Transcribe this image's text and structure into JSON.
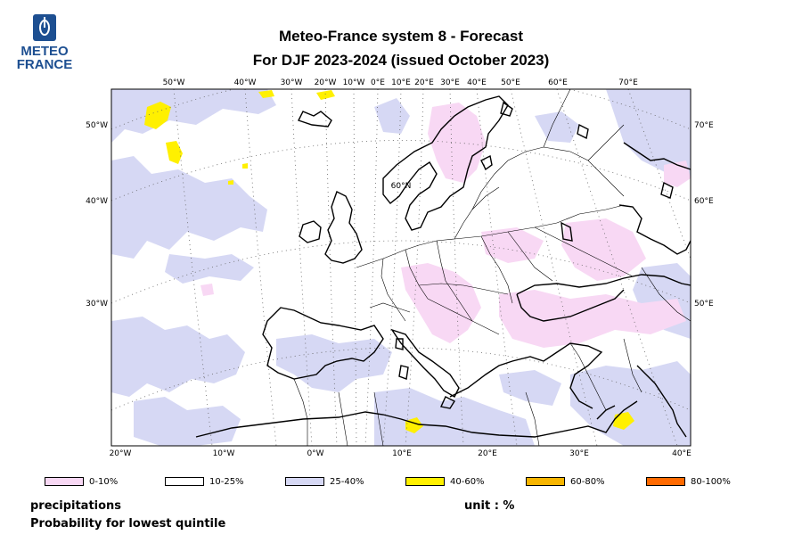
{
  "logo": {
    "line1": "METEO",
    "line2": "FRANCE"
  },
  "title": {
    "line1": "Meteo-France system 8  -  Forecast",
    "line2": "For DJF 2023-2024      (issued October 2023)"
  },
  "map": {
    "top_lon_labels": [
      "50°W",
      "40°W",
      "30°W",
      "20°W",
      "10°W",
      "0°E",
      "10°E",
      "20°E",
      "30°E",
      "40°E",
      "50°E",
      "60°E",
      "70°E"
    ],
    "bottom_lon_labels": [
      "20°W",
      "10°W",
      "0°W",
      "10°E",
      "20°E",
      "30°E",
      "40°E"
    ],
    "left_lat_labels": [
      "50°W",
      "40°W",
      "30°W"
    ],
    "right_labels": [
      "70°E",
      "60°E",
      "50°E"
    ],
    "inner_label": "60°N"
  },
  "legend": [
    {
      "label": "0-10%",
      "color": "#f8d8f4"
    },
    {
      "label": "10-25%",
      "color": "#ffffff"
    },
    {
      "label": "25-40%",
      "color": "#d6d8f4"
    },
    {
      "label": "40-60%",
      "color": "#fff000"
    },
    {
      "label": "60-80%",
      "color": "#f7b500"
    },
    {
      "label": "80-100%",
      "color": "#ff6a00"
    }
  ],
  "footer": {
    "variable": "precipitations",
    "description": "Probability for lowest quintile",
    "unit": "unit : %"
  }
}
